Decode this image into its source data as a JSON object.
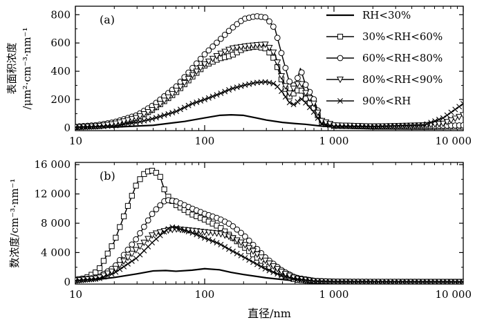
{
  "chart_data": [
    {
      "type": "line",
      "panel_label": "(a)",
      "ylabel_line1": "表面积浓度",
      "ylabel_line2": "/μm²·cm⁻³·nm⁻¹",
      "xlabel": "",
      "xscale": "log",
      "xlim": [
        10,
        10000
      ],
      "ylim": [
        -20,
        860
      ],
      "x_ticks": [
        10,
        100,
        1000,
        10000
      ],
      "x_tick_labels": [
        "10",
        "100",
        "1 000",
        "10 000"
      ],
      "y_ticks": [
        0,
        200,
        400,
        600,
        800
      ],
      "y_tick_labels": [
        "0",
        "200",
        "400",
        "600",
        "800"
      ],
      "legend_position": "top-right",
      "series": [
        {
          "name": "RH<30%",
          "marker": "none",
          "points": [
            [
              10,
              2
            ],
            [
              20,
              5
            ],
            [
              40,
              18
            ],
            [
              70,
              45
            ],
            [
              100,
              70
            ],
            [
              130,
              88
            ],
            [
              160,
              92
            ],
            [
              200,
              88
            ],
            [
              250,
              70
            ],
            [
              300,
              55
            ],
            [
              400,
              38
            ],
            [
              500,
              30
            ],
            [
              600,
              25
            ],
            [
              800,
              12
            ],
            [
              1000,
              6
            ],
            [
              2000,
              4
            ],
            [
              5000,
              3
            ],
            [
              10000,
              2
            ]
          ]
        },
        {
          "name": "30%<RH<60%",
          "marker": "square",
          "points": [
            [
              10,
              5
            ],
            [
              15,
              12
            ],
            [
              20,
              25
            ],
            [
              30,
              70
            ],
            [
              40,
              130
            ],
            [
              60,
              250
            ],
            [
              80,
              360
            ],
            [
              100,
              440
            ],
            [
              130,
              490
            ],
            [
              160,
              510
            ],
            [
              200,
              560
            ],
            [
              250,
              575
            ],
            [
              300,
              560
            ],
            [
              350,
              480
            ],
            [
              400,
              320
            ],
            [
              450,
              220
            ],
            [
              500,
              250
            ],
            [
              550,
              280
            ],
            [
              600,
              210
            ],
            [
              700,
              140
            ],
            [
              800,
              40
            ],
            [
              1000,
              15
            ],
            [
              2000,
              8
            ],
            [
              5000,
              6
            ],
            [
              10000,
              8
            ]
          ]
        },
        {
          "name": "60%<RH<80%",
          "marker": "circle",
          "points": [
            [
              10,
              8
            ],
            [
              15,
              20
            ],
            [
              20,
              40
            ],
            [
              30,
              90
            ],
            [
              40,
              160
            ],
            [
              60,
              290
            ],
            [
              80,
              420
            ],
            [
              100,
              520
            ],
            [
              130,
              620
            ],
            [
              160,
              700
            ],
            [
              200,
              770
            ],
            [
              250,
              790
            ],
            [
              300,
              780
            ],
            [
              350,
              700
            ],
            [
              400,
              500
            ],
            [
              450,
              330
            ],
            [
              500,
              290
            ],
            [
              550,
              420
            ],
            [
              600,
              310
            ],
            [
              700,
              200
            ],
            [
              800,
              50
            ],
            [
              1000,
              15
            ],
            [
              2000,
              10
            ],
            [
              5000,
              12
            ],
            [
              10000,
              18
            ]
          ]
        },
        {
          "name": "80%<RH<90%",
          "marker": "triangle-down",
          "points": [
            [
              10,
              5
            ],
            [
              15,
              12
            ],
            [
              20,
              28
            ],
            [
              30,
              72
            ],
            [
              40,
              130
            ],
            [
              60,
              260
            ],
            [
              80,
              370
            ],
            [
              100,
              450
            ],
            [
              130,
              520
            ],
            [
              160,
              560
            ],
            [
              200,
              575
            ],
            [
              250,
              585
            ],
            [
              300,
              590
            ],
            [
              350,
              520
            ],
            [
              400,
              340
            ],
            [
              450,
              240
            ],
            [
              500,
              290
            ],
            [
              550,
              330
            ],
            [
              600,
              250
            ],
            [
              700,
              170
            ],
            [
              800,
              50
            ],
            [
              1000,
              18
            ],
            [
              2000,
              10
            ],
            [
              5000,
              18
            ],
            [
              7000,
              30
            ],
            [
              10000,
              90
            ]
          ]
        },
        {
          "name": "90%<RH",
          "marker": "cross",
          "points": [
            [
              10,
              4
            ],
            [
              15,
              8
            ],
            [
              20,
              14
            ],
            [
              30,
              38
            ],
            [
              40,
              65
            ],
            [
              60,
              115
            ],
            [
              80,
              170
            ],
            [
              100,
              200
            ],
            [
              130,
              240
            ],
            [
              160,
              275
            ],
            [
              200,
              300
            ],
            [
              250,
              320
            ],
            [
              300,
              325
            ],
            [
              350,
              310
            ],
            [
              400,
              250
            ],
            [
              450,
              180
            ],
            [
              500,
              160
            ],
            [
              550,
              210
            ],
            [
              600,
              180
            ],
            [
              700,
              110
            ],
            [
              800,
              30
            ],
            [
              1000,
              10
            ],
            [
              2000,
              8
            ],
            [
              5000,
              20
            ],
            [
              7000,
              70
            ],
            [
              10000,
              170
            ]
          ]
        }
      ]
    },
    {
      "type": "line",
      "panel_label": "(b)",
      "ylabel_line1": "数浓度/cm⁻³·nm⁻¹",
      "xlabel": "直径/nm",
      "xscale": "log",
      "xlim": [
        10,
        10000
      ],
      "ylim": [
        -300,
        16300
      ],
      "x_ticks": [
        10,
        100,
        1000,
        10000
      ],
      "x_tick_labels": [
        "10",
        "100",
        "1 000",
        "10 000"
      ],
      "y_ticks": [
        0,
        4000,
        8000,
        12000,
        16000
      ],
      "y_tick_labels": [
        "0",
        "4 000",
        "8 000",
        "12 000",
        "16 000"
      ],
      "series": [
        {
          "name": "RH<30%",
          "marker": "none",
          "points": [
            [
              10,
              200
            ],
            [
              15,
              350
            ],
            [
              20,
              600
            ],
            [
              30,
              1100
            ],
            [
              40,
              1500
            ],
            [
              50,
              1550
            ],
            [
              60,
              1450
            ],
            [
              80,
              1600
            ],
            [
              100,
              1800
            ],
            [
              130,
              1650
            ],
            [
              160,
              1300
            ],
            [
              200,
              1000
            ],
            [
              300,
              550
            ],
            [
              500,
              150
            ],
            [
              1000,
              20
            ],
            [
              10000,
              0
            ]
          ]
        },
        {
          "name": "30%<RH<60%",
          "marker": "square",
          "points": [
            [
              10,
              300
            ],
            [
              12,
              500
            ],
            [
              15,
              1500
            ],
            [
              20,
              5500
            ],
            [
              25,
              10000
            ],
            [
              30,
              13500
            ],
            [
              35,
              15000
            ],
            [
              40,
              15200
            ],
            [
              45,
              14500
            ],
            [
              50,
              12000
            ],
            [
              60,
              10500
            ],
            [
              80,
              9200
            ],
            [
              100,
              8500
            ],
            [
              130,
              7500
            ],
            [
              160,
              6200
            ],
            [
              200,
              4800
            ],
            [
              300,
              2300
            ],
            [
              400,
              1000
            ],
            [
              500,
              300
            ],
            [
              700,
              100
            ],
            [
              1000,
              20
            ],
            [
              10000,
              0
            ]
          ]
        },
        {
          "name": "60%<RH<80%",
          "marker": "circle",
          "points": [
            [
              10,
              200
            ],
            [
              15,
              600
            ],
            [
              20,
              2000
            ],
            [
              30,
              6000
            ],
            [
              40,
              9500
            ],
            [
              50,
              11200
            ],
            [
              60,
              11000
            ],
            [
              80,
              10000
            ],
            [
              100,
              9300
            ],
            [
              130,
              8600
            ],
            [
              160,
              7800
            ],
            [
              200,
              6400
            ],
            [
              300,
              3200
            ],
            [
              400,
              1500
            ],
            [
              500,
              600
            ],
            [
              700,
              150
            ],
            [
              1000,
              30
            ],
            [
              10000,
              0
            ]
          ]
        },
        {
          "name": "80%<RH<90%",
          "marker": "triangle-down",
          "points": [
            [
              10,
              200
            ],
            [
              15,
              500
            ],
            [
              20,
              1600
            ],
            [
              30,
              4500
            ],
            [
              40,
              6500
            ],
            [
              50,
              7000
            ],
            [
              60,
              7200
            ],
            [
              80,
              7000
            ],
            [
              100,
              6800
            ],
            [
              130,
              6600
            ],
            [
              160,
              6100
            ],
            [
              200,
              5200
            ],
            [
              300,
              2800
            ],
            [
              400,
              1300
            ],
            [
              500,
              500
            ],
            [
              700,
              120
            ],
            [
              1000,
              30
            ],
            [
              10000,
              0
            ]
          ]
        },
        {
          "name": "90%<RH",
          "marker": "cross",
          "points": [
            [
              10,
              150
            ],
            [
              15,
              400
            ],
            [
              20,
              1200
            ],
            [
              30,
              3300
            ],
            [
              40,
              5500
            ],
            [
              50,
              7000
            ],
            [
              55,
              7500
            ],
            [
              60,
              7400
            ],
            [
              80,
              6700
            ],
            [
              100,
              6000
            ],
            [
              130,
              5200
            ],
            [
              160,
              4300
            ],
            [
              200,
              3400
            ],
            [
              300,
              1700
            ],
            [
              400,
              800
            ],
            [
              500,
              400
            ],
            [
              700,
              100
            ],
            [
              1000,
              20
            ],
            [
              10000,
              0
            ]
          ]
        }
      ]
    }
  ]
}
